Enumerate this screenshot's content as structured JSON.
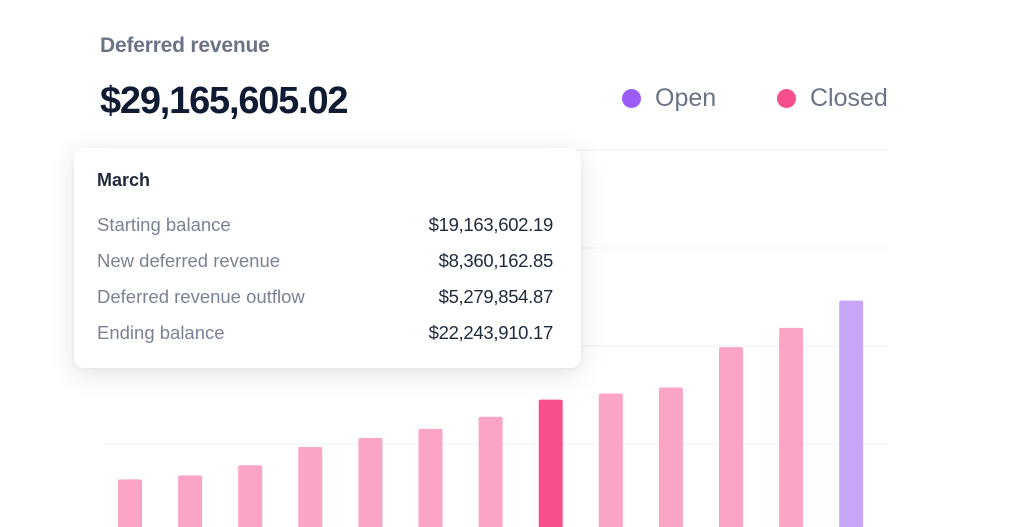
{
  "header": {
    "title": "Deferred revenue",
    "total": "$29,165,605.02"
  },
  "legend": [
    {
      "label": "Open",
      "color": "#9b5cf6"
    },
    {
      "label": "Closed",
      "color": "#f44f8c"
    }
  ],
  "tooltip": {
    "month": "March",
    "rows": [
      {
        "label": "Starting balance",
        "value": "$19,163,602.19"
      },
      {
        "label": "New deferred revenue",
        "value": "$8,360,162.85"
      },
      {
        "label": "Deferred revenue outflow",
        "value": "$5,279,854.87"
      },
      {
        "label": "Ending balance",
        "value": "$22,243,910.17"
      }
    ]
  },
  "colors": {
    "closed": "#fba4c5",
    "highlight": "#f64f8c",
    "open": "#c7a6f8",
    "grid": "#eef0f4"
  },
  "chart_data": {
    "type": "bar",
    "values": [
      6.2,
      6.6,
      7.6,
      9.4,
      10.3,
      11.2,
      12.4,
      14.1,
      14.7,
      15.3,
      19.3,
      21.2,
      23.9
    ],
    "status": [
      "closed",
      "closed",
      "closed",
      "closed",
      "closed",
      "closed",
      "closed",
      "closed",
      "closed",
      "closed",
      "closed",
      "closed",
      "open"
    ],
    "highlight_index": 7,
    "ylim": [
      0,
      30
    ],
    "grid": true
  }
}
